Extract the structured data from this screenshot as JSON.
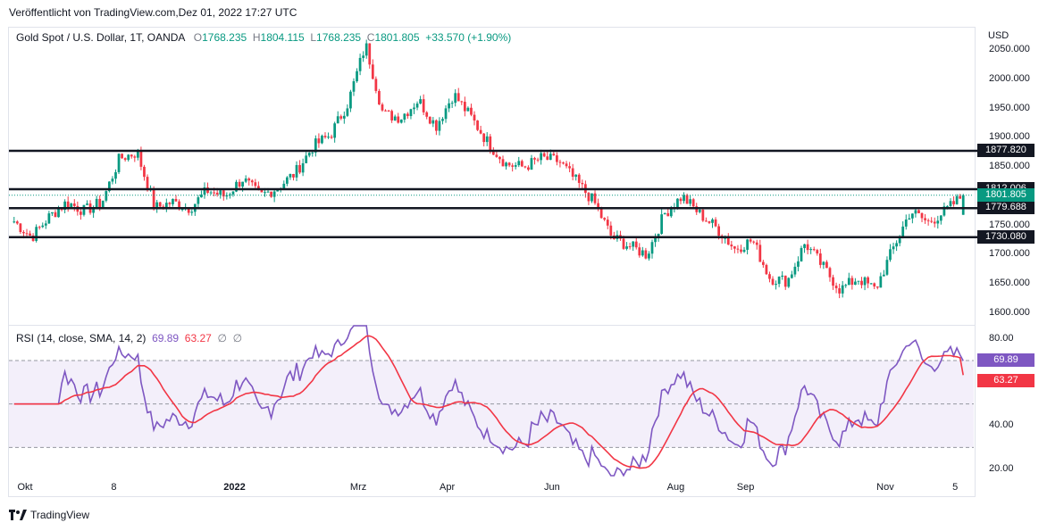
{
  "published": "Veröffentlicht von TradingView.com,Dez 01, 2022 17:27 UTC",
  "legend": {
    "symbol": "Gold Spot / U.S. Dollar, 1T, OANDA",
    "o_label": "O",
    "o": "1768.235",
    "h_label": "H",
    "h": "1804.115",
    "l_label": "L",
    "l": "1768.235",
    "c_label": "C",
    "c": "1801.805",
    "change": "+33.570 (+1.90%)"
  },
  "rsi_legend": {
    "title": "RSI (14, close, SMA, 14, 2)",
    "rsi": "69.89",
    "sma": "63.27",
    "na1": "∅",
    "na2": "∅"
  },
  "currency": "USD",
  "price_label": "1801.805",
  "rsi_label": "69.89",
  "rsi_sma_label": "63.27",
  "footer": "TradingView",
  "colors": {
    "up": "#089981",
    "down": "#f23645",
    "rsi": "#7e57c2",
    "rsi_sma": "#f23645",
    "level": "#131722",
    "band": "#f3effa"
  },
  "chart_data": [
    {
      "type": "candlestick",
      "title": "Gold Spot / U.S. Dollar, 1T, OANDA",
      "ylabel": "USD",
      "ylim": [
        1580,
        2090
      ],
      "yticks": [
        "2050.000",
        "2000.000",
        "1950.000",
        "1900.000",
        "1850.000",
        "1800.000",
        "1750.000",
        "1700.000",
        "1650.000",
        "1600.000"
      ],
      "xticks": [
        "Okt",
        "8",
        "2022",
        "Mrz",
        "Apr",
        "Jun",
        "Aug",
        "Sep",
        "Nov",
        "5"
      ],
      "levels": [
        {
          "value": 1877.82,
          "label": "1877.820"
        },
        {
          "value": 1812.006,
          "label": "1812.006"
        },
        {
          "value": 1779.688,
          "label": "1779.688"
        },
        {
          "value": 1730.08,
          "label": "1730.080"
        }
      ],
      "last": {
        "open": 1768.235,
        "high": 1804.115,
        "low": 1768.235,
        "close": 1801.805
      },
      "anchors": [
        [
          "Okt",
          1757
        ],
        [
          "",
          1730
        ],
        [
          "",
          1765
        ],
        [
          "",
          1790
        ],
        [
          "",
          1775
        ],
        [
          "8",
          1790
        ],
        [
          "",
          1865
        ],
        [
          "",
          1875
        ],
        [
          "",
          1780
        ],
        [
          "",
          1790
        ],
        [
          "",
          1780
        ],
        [
          "",
          1810
        ],
        [
          "2022",
          1800
        ],
        [
          "",
          1830
        ],
        [
          "",
          1800
        ],
        [
          "",
          1815
        ],
        [
          "",
          1840
        ],
        [
          "",
          1885
        ],
        [
          "",
          1905
        ],
        [
          "Mrz",
          1960
        ],
        [
          "",
          2060
        ],
        [
          "",
          1940
        ],
        [
          "",
          1935
        ],
        [
          "",
          1965
        ],
        [
          "Apr",
          1920
        ],
        [
          "",
          1975
        ],
        [
          "",
          1935
        ],
        [
          "",
          1890
        ],
        [
          "",
          1855
        ],
        [
          "",
          1850
        ],
        [
          "Jun",
          1865
        ],
        [
          "",
          1860
        ],
        [
          "",
          1825
        ],
        [
          "",
          1790
        ],
        [
          "",
          1730
        ],
        [
          "",
          1715
        ],
        [
          "",
          1700
        ],
        [
          "Aug",
          1770
        ],
        [
          "",
          1800
        ],
        [
          "",
          1770
        ],
        [
          "",
          1745
        ],
        [
          "Sep",
          1710
        ],
        [
          "",
          1725
        ],
        [
          "",
          1660
        ],
        [
          "",
          1655
        ],
        [
          "",
          1720
        ],
        [
          "",
          1680
        ],
        [
          "",
          1640
        ],
        [
          "",
          1660
        ],
        [
          "Nov",
          1640
        ],
        [
          "",
          1710
        ],
        [
          "",
          1775
        ],
        [
          "",
          1755
        ],
        [
          "5",
          1775
        ],
        [
          "",
          1802
        ]
      ]
    },
    {
      "type": "line",
      "title": "RSI (14, close, SMA, 14, 2)",
      "ylim": [
        17,
        86
      ],
      "yticks": [
        "80.00",
        "40.00",
        "20.00"
      ],
      "bands": [
        30,
        50,
        70
      ],
      "series": [
        {
          "name": "RSI",
          "last": 69.89
        },
        {
          "name": "SMA",
          "last": 63.27
        }
      ]
    }
  ]
}
